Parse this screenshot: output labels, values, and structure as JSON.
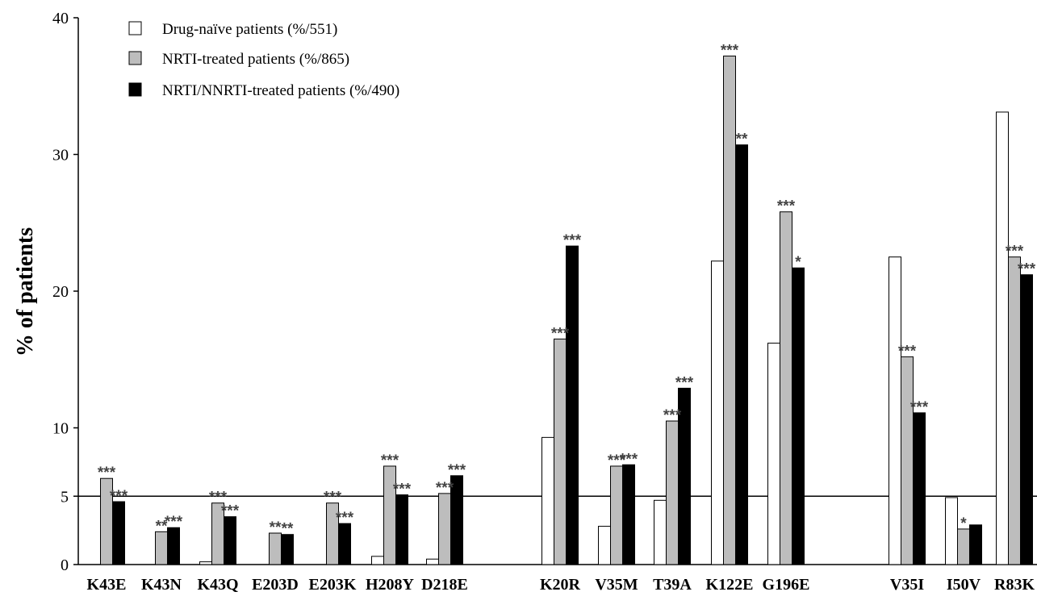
{
  "chart_data": {
    "type": "bar",
    "title": "",
    "xlabel": "",
    "ylabel": "% of patients",
    "ylim": [
      0,
      40
    ],
    "yticks": [
      0,
      5,
      10,
      20,
      30,
      40
    ],
    "reference_line": 5,
    "grid": false,
    "legend_position": "top-left",
    "categories": [
      "K43E",
      "K43N",
      "K43Q",
      "E203D",
      "E203K",
      "H208Y",
      "D218E",
      "K20R",
      "V35M",
      "T39A",
      "K122E",
      "G196E",
      "V35I",
      "I50V",
      "R83K"
    ],
    "category_groups": [
      [
        0,
        1,
        2,
        3,
        4,
        5,
        6
      ],
      [
        7,
        8,
        9,
        10,
        11
      ],
      [
        12,
        13,
        14
      ]
    ],
    "series": [
      {
        "name": "Drug-naïve patients (%/551)",
        "color": "#ffffff",
        "values": [
          0,
          0,
          0.2,
          0,
          0,
          0.6,
          0.4,
          9.3,
          2.8,
          4.7,
          22.2,
          16.2,
          22.5,
          4.9,
          33.1
        ],
        "significance": [
          "",
          "",
          "",
          "",
          "",
          "",
          "",
          "",
          "",
          "",
          "",
          "",
          "",
          "",
          ""
        ]
      },
      {
        "name": "NRTI-treated patients (%/865)",
        "color": "#bdbdbd",
        "values": [
          6.3,
          2.4,
          4.5,
          2.3,
          4.5,
          7.2,
          5.2,
          16.5,
          7.2,
          10.5,
          37.2,
          25.8,
          15.2,
          2.6,
          22.5
        ],
        "significance": [
          "***",
          "**",
          "***",
          "**",
          "***",
          "***",
          "***",
          "***",
          "***",
          "***",
          "***",
          "***",
          "***",
          "*",
          "***"
        ]
      },
      {
        "name": "NRTI/NNRTI-treated patients (%/490)",
        "color": "#000000",
        "values": [
          4.6,
          2.7,
          3.5,
          2.2,
          3.0,
          5.1,
          6.5,
          23.3,
          7.3,
          12.9,
          30.7,
          21.7,
          11.1,
          2.9,
          21.2
        ],
        "significance": [
          "***",
          "***",
          "***",
          "**",
          "***",
          "***",
          "***",
          "***",
          "***",
          "***",
          "**",
          "*",
          "***",
          "",
          "***"
        ]
      }
    ]
  }
}
